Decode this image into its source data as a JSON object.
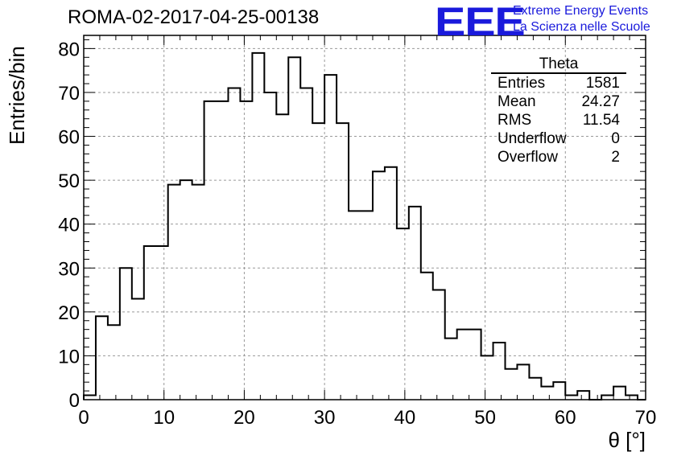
{
  "page": {
    "title": "ROMA-02-2017-04-25-00138",
    "logo": "EEE",
    "logo_line1": "Extreme Energy Events",
    "logo_line2": "La Scienza nelle Scuole"
  },
  "stats": {
    "name": "Theta",
    "rows": [
      {
        "label": "Entries",
        "value": "1581"
      },
      {
        "label": "Mean",
        "value": "24.27"
      },
      {
        "label": "RMS",
        "value": "11.54"
      },
      {
        "label": "Underflow",
        "value": "0"
      },
      {
        "label": "Overflow",
        "value": "2"
      }
    ]
  },
  "chart_data": {
    "type": "histogram",
    "title": "ROMA-02-2017-04-25-00138",
    "xlabel": "θ [°]",
    "ylabel": "Entries/bin",
    "xlim": [
      0,
      70
    ],
    "ylim": [
      0,
      83
    ],
    "bin_width": 1.5,
    "bin_edges_start": 0,
    "values": [
      1,
      19,
      17,
      30,
      23,
      35,
      35,
      49,
      50,
      49,
      68,
      68,
      71,
      68,
      79,
      70,
      65,
      78,
      71,
      63,
      74,
      63,
      43,
      43,
      52,
      53,
      39,
      44,
      29,
      25,
      14,
      16,
      16,
      10,
      13,
      7,
      8,
      5,
      3,
      4,
      1,
      2,
      0,
      1,
      3,
      1,
      0
    ],
    "xticks": [
      0,
      10,
      20,
      30,
      40,
      50,
      60,
      70
    ],
    "yticks": [
      0,
      10,
      20,
      30,
      40,
      50,
      60,
      70,
      80
    ],
    "grid": true,
    "line_color": "#000000"
  }
}
